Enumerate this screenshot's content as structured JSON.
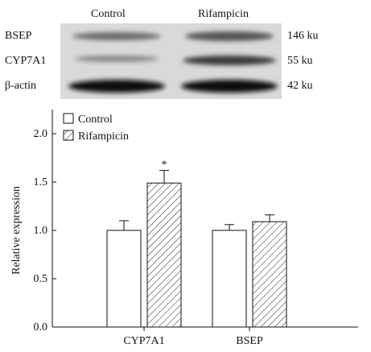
{
  "blot": {
    "headers": [
      "Control",
      "Rifampicin"
    ],
    "rows": [
      {
        "label": "BSEP",
        "size": "146 ku"
      },
      {
        "label": "CYP7A1",
        "size": "55 ku"
      },
      {
        "label": "β-actin",
        "size": "42 ku"
      }
    ]
  },
  "chart_data": {
    "type": "bar",
    "title": "",
    "xlabel": "",
    "ylabel": "Relative expression",
    "categories": [
      "CYP7A1",
      "BSEP"
    ],
    "ylim": [
      0,
      2.0
    ],
    "yticks": [
      "0.0",
      "0.5",
      "1.0",
      "1.5",
      "2.0"
    ],
    "series": [
      {
        "name": "Control",
        "values": [
          1.0,
          1.0
        ],
        "errors": [
          0.1,
          0.06
        ],
        "fill": "white"
      },
      {
        "name": "Rifampicin",
        "values": [
          1.49,
          1.09
        ],
        "errors": [
          0.13,
          0.07
        ],
        "fill": "hatch"
      }
    ],
    "annotations": [
      {
        "category": "CYP7A1",
        "series": "Rifampicin",
        "text": "*"
      }
    ],
    "legend_position": "top-left",
    "grid": false
  }
}
